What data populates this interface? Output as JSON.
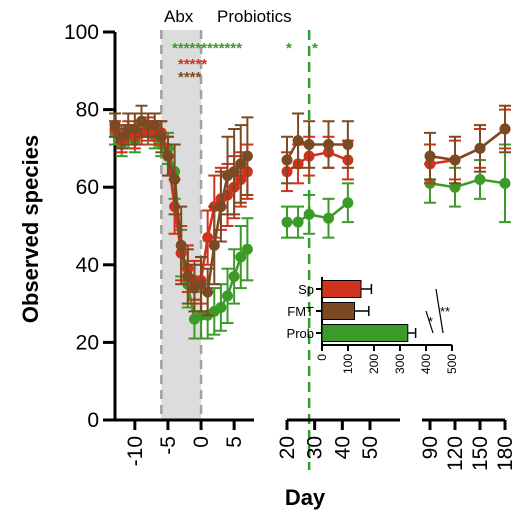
{
  "chart_data": [
    {
      "type": "line",
      "ylabel": "Observed species",
      "xlabel": "Day",
      "ylim": [
        0,
        100
      ],
      "yticks": [
        "0",
        "20",
        "40",
        "60",
        "80",
        "100"
      ],
      "xtick_segments": [
        [
          "-10",
          "-5",
          "0",
          "5"
        ],
        [
          "20",
          "30",
          "40",
          "50"
        ],
        [
          "90",
          "120",
          "150",
          "180"
        ]
      ],
      "shaded_region_label": "Abx",
      "header_right": "Probiotics",
      "shaded_region": [
        -6,
        0
      ],
      "vline_x": 28,
      "colors": {
        "Sp": "#d0321e",
        "FMT": "#7b4a22",
        "Prob": "#3c9a28"
      },
      "significance": [
        {
          "text": "************",
          "color": "#3c9a28"
        },
        {
          "text": "*",
          "color": "#3c9a28"
        },
        {
          "text": "*",
          "color": "#3c9a28"
        },
        {
          "text": "*****",
          "color": "#d0321e"
        },
        {
          "text": "****",
          "color": "#7b4a22"
        }
      ],
      "series": [
        {
          "key": "Sp",
          "x": [
            -13,
            -12,
            -11,
            -10,
            -9,
            -8,
            -7,
            -6,
            -5,
            -4,
            -3,
            -2,
            -1,
            0,
            1,
            2,
            3,
            4,
            5,
            6,
            7,
            20,
            24,
            28,
            35,
            42,
            90,
            120,
            150,
            180
          ],
          "y": [
            75,
            72,
            74,
            73,
            74,
            75,
            74,
            74,
            68,
            55,
            43,
            39,
            36,
            36,
            47,
            55,
            57,
            58,
            60,
            62,
            64,
            64,
            66,
            68,
            69,
            67,
            66,
            67,
            70,
            75
          ],
          "err": [
            2,
            3,
            3,
            3,
            3,
            3,
            3,
            3,
            5,
            7,
            7,
            6,
            5,
            6,
            7,
            8,
            8,
            8,
            8,
            7,
            7,
            5,
            5,
            5,
            4,
            5,
            5,
            5,
            5,
            5
          ]
        },
        {
          "key": "FMT",
          "x": [
            -13,
            -12,
            -11,
            -10,
            -9,
            -8,
            -7,
            -6,
            -5,
            -4,
            -3,
            -2,
            -1,
            0,
            1,
            2,
            3,
            4,
            5,
            6,
            7,
            20,
            24,
            28,
            35,
            42,
            90,
            120,
            150,
            180
          ],
          "y": [
            76,
            73,
            75,
            75,
            77,
            76,
            76,
            73,
            68,
            62,
            45,
            37,
            34,
            35,
            33,
            45,
            55,
            63,
            64,
            66,
            68,
            67,
            72,
            71,
            71,
            71,
            68,
            67,
            70,
            75
          ],
          "err": [
            3,
            3,
            4,
            4,
            4,
            3,
            3,
            4,
            5,
            9,
            10,
            7,
            6,
            7,
            6,
            10,
            9,
            10,
            11,
            10,
            10,
            6,
            7,
            6,
            6,
            6,
            6,
            6,
            6,
            6
          ]
        },
        {
          "key": "Prob",
          "x": [
            -13,
            -12,
            -11,
            -10,
            -9,
            -8,
            -7,
            -6,
            -5,
            -4,
            -3,
            -2,
            -1,
            0,
            1,
            2,
            3,
            4,
            5,
            6,
            7,
            20,
            24,
            28,
            35,
            42,
            90,
            120,
            150,
            180
          ],
          "y": [
            74,
            71,
            73,
            72,
            74,
            74,
            73,
            71,
            70,
            64,
            43,
            35,
            26,
            27,
            27,
            28,
            29,
            32,
            37,
            42,
            44,
            51,
            51,
            53,
            52,
            56,
            61,
            60,
            62,
            61
          ],
          "err": [
            3,
            3,
            3,
            3,
            3,
            3,
            3,
            3,
            4,
            7,
            6,
            6,
            5,
            6,
            6,
            6,
            6,
            7,
            7,
            8,
            8,
            4,
            4,
            5,
            5,
            5,
            5,
            5,
            5,
            10
          ]
        }
      ]
    },
    {
      "type": "bar",
      "orientation": "horizontal",
      "categories": [
        "Sp",
        "FMT",
        "Prob"
      ],
      "values": [
        150,
        125,
        330
      ],
      "err": [
        40,
        55,
        30
      ],
      "xlim": [
        0,
        500
      ],
      "xticks": [
        "0",
        "100",
        "200",
        "300",
        "400",
        "500"
      ],
      "significance": [
        "*",
        "**"
      ]
    }
  ]
}
